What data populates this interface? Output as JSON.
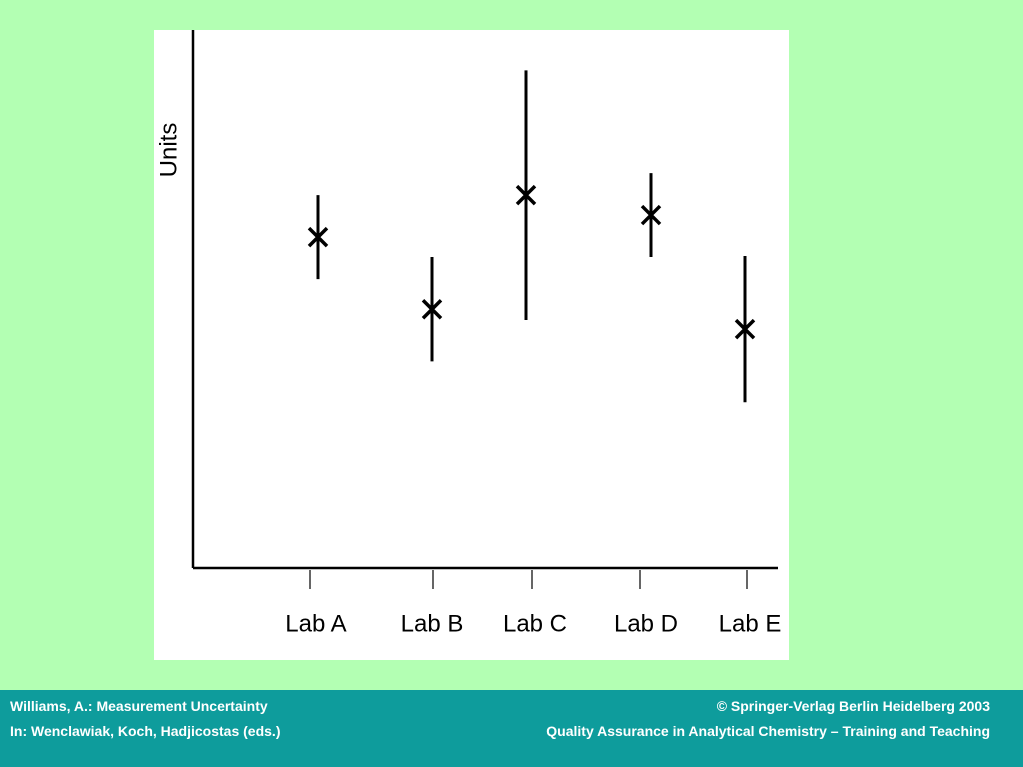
{
  "chart_data": {
    "type": "errorbar",
    "y_label": "Units",
    "categories": [
      "Lab A",
      "Lab B",
      "Lab C",
      "Lab D",
      "Lab E"
    ],
    "values": [
      61.5,
      48.1,
      69.3,
      65.6,
      44.4
    ],
    "errors": [
      7.8,
      9.7,
      23.2,
      7.8,
      13.6
    ],
    "color": "#000000",
    "ylim": [
      0,
      100
    ]
  },
  "footer": {
    "left_line1": "Williams, A.: Measurement Uncertainty",
    "left_line2": "In:  Wenclawiak, Koch, Hadjicostas (eds.)",
    "right_line1": "© Springer-Verlag Berlin Heidelberg 2003",
    "right_line2": "Quality Assurance in Analytical Chemistry – Training and Teaching"
  }
}
